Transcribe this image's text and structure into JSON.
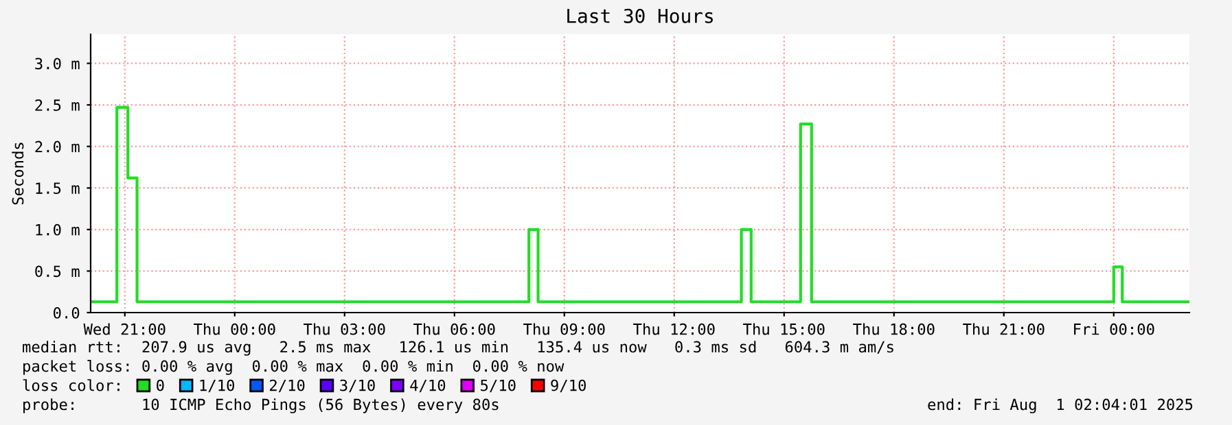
{
  "chart_data": {
    "type": "step",
    "title": "Last 30 Hours",
    "ylabel": "Seconds",
    "legend_title": "loss color:",
    "legend": "bottom",
    "grid": true,
    "line_style": "solid",
    "x": [
      "2025-07-30T20:04",
      "2025-07-30T20:47",
      "2025-07-30T21:05",
      "2025-07-30T21:20",
      "2025-07-31T08:02",
      "2025-07-31T08:17",
      "2025-07-31T13:50",
      "2025-07-31T14:06",
      "2025-07-31T15:27",
      "2025-07-31T15:45",
      "2025-08-01T00:00",
      "2025-08-01T00:14",
      "2025-08-01T02:04"
    ],
    "series": [
      {
        "name": "0",
        "color": "#22dd22",
        "values": [
          0.13,
          2.47,
          1.62,
          0.13,
          1.0,
          0.13,
          1.0,
          0.13,
          2.27,
          0.13,
          0.55,
          0.13,
          0.13
        ]
      },
      {
        "name": "1/10",
        "color": "#00b8ff",
        "values": [
          null,
          null,
          null,
          null,
          null,
          null,
          null,
          null,
          null,
          null,
          null,
          null,
          null
        ]
      },
      {
        "name": "2/10",
        "color": "#0059ff",
        "values": [
          null,
          null,
          null,
          null,
          null,
          null,
          null,
          null,
          null,
          null,
          null,
          null,
          null
        ]
      },
      {
        "name": "3/10",
        "color": "#5e00ff",
        "values": [
          null,
          null,
          null,
          null,
          null,
          null,
          null,
          null,
          null,
          null,
          null,
          null,
          null
        ]
      },
      {
        "name": "4/10",
        "color": "#7e00ff",
        "values": [
          null,
          null,
          null,
          null,
          null,
          null,
          null,
          null,
          null,
          null,
          null,
          null,
          null
        ]
      },
      {
        "name": "5/10",
        "color": "#dd00ff",
        "values": [
          null,
          null,
          null,
          null,
          null,
          null,
          null,
          null,
          null,
          null,
          null,
          null,
          null
        ]
      },
      {
        "name": "9/10",
        "color": "#ff0000",
        "values": [
          null,
          null,
          null,
          null,
          null,
          null,
          null,
          null,
          null,
          null,
          null,
          null,
          null
        ]
      }
    ],
    "xlim": [
      "2025-07-30T20:04",
      "2025-08-01T02:04"
    ],
    "xticks": [
      {
        "value": "2025-07-30T21:00",
        "label": "Wed 21:00"
      },
      {
        "value": "2025-07-31T00:00",
        "label": "Thu 00:00"
      },
      {
        "value": "2025-07-31T03:00",
        "label": "Thu 03:00"
      },
      {
        "value": "2025-07-31T06:00",
        "label": "Thu 06:00"
      },
      {
        "value": "2025-07-31T09:00",
        "label": "Thu 09:00"
      },
      {
        "value": "2025-07-31T12:00",
        "label": "Thu 12:00"
      },
      {
        "value": "2025-07-31T15:00",
        "label": "Thu 15:00"
      },
      {
        "value": "2025-07-31T18:00",
        "label": "Thu 18:00"
      },
      {
        "value": "2025-07-31T21:00",
        "label": "Thu 21:00"
      },
      {
        "value": "2025-08-01T00:00",
        "label": "Fri 00:00"
      }
    ],
    "ylim": [
      0,
      3.35
    ],
    "yticks": [
      {
        "value": 0,
        "label": "0.0"
      },
      {
        "value": 0.5,
        "label": "0.5 m"
      },
      {
        "value": 1.0,
        "label": "1.0 m"
      },
      {
        "value": 1.5,
        "label": "1.5 m"
      },
      {
        "value": 2.0,
        "label": "2.0 m"
      },
      {
        "value": 2.5,
        "label": "2.5 m"
      },
      {
        "value": 3.0,
        "label": "3.0 m"
      }
    ],
    "annotations": [
      "median rtt:  207.9 us avg   2.5 ms max   126.1 us min   135.4 us now   0.3 ms sd   604.3 m am/s",
      "packet loss: 0.00 % avg  0.00 % max  0.00 % min  0.00 % now",
      "probe:       10 ICMP Echo Pings (56 Bytes) every 80s",
      "end: Fri Aug  1 02:04:01 2025"
    ]
  }
}
